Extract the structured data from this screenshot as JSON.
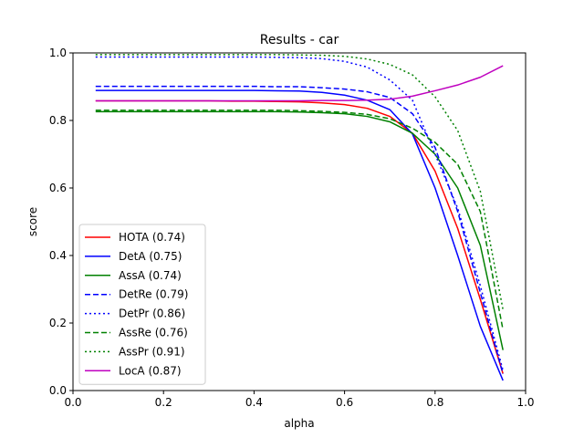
{
  "chart_data": {
    "type": "line",
    "title": "Results - car",
    "xlabel": "alpha",
    "ylabel": "score",
    "xlim": [
      0,
      1
    ],
    "ylim": [
      0,
      1
    ],
    "xticks": [
      "0.0",
      "0.2",
      "0.4",
      "0.6",
      "0.8",
      "1.0"
    ],
    "yticks": [
      "0.0",
      "0.2",
      "0.4",
      "0.6",
      "0.8",
      "1.0"
    ],
    "grid": false,
    "legend_position": "lower-left",
    "x": [
      0.05,
      0.1,
      0.15,
      0.2,
      0.25,
      0.3,
      0.35,
      0.4,
      0.45,
      0.5,
      0.55,
      0.6,
      0.65,
      0.7,
      0.75,
      0.8,
      0.85,
      0.9,
      0.95
    ],
    "series": [
      {
        "name": "HOTA (0.74)",
        "color": "#ff0000",
        "dash": "solid",
        "values": [
          0.858,
          0.858,
          0.858,
          0.858,
          0.858,
          0.858,
          0.857,
          0.857,
          0.856,
          0.855,
          0.852,
          0.847,
          0.836,
          0.812,
          0.762,
          0.65,
          0.48,
          0.27,
          0.05
        ]
      },
      {
        "name": "DetA (0.75)",
        "color": "#0000ff",
        "dash": "solid",
        "values": [
          0.889,
          0.889,
          0.889,
          0.889,
          0.889,
          0.889,
          0.889,
          0.889,
          0.888,
          0.887,
          0.883,
          0.875,
          0.86,
          0.832,
          0.76,
          0.6,
          0.4,
          0.19,
          0.03
        ]
      },
      {
        "name": "AssA (0.74)",
        "color": "#008000",
        "dash": "solid",
        "values": [
          0.826,
          0.826,
          0.826,
          0.826,
          0.826,
          0.826,
          0.826,
          0.826,
          0.826,
          0.825,
          0.823,
          0.82,
          0.812,
          0.796,
          0.762,
          0.7,
          0.6,
          0.43,
          0.12
        ]
      },
      {
        "name": "DetRe (0.79)",
        "color": "#0000ff",
        "dash": "dashed",
        "values": [
          0.901,
          0.901,
          0.901,
          0.901,
          0.901,
          0.901,
          0.901,
          0.901,
          0.9,
          0.9,
          0.897,
          0.893,
          0.885,
          0.868,
          0.82,
          0.72,
          0.53,
          0.29,
          0.05
        ]
      },
      {
        "name": "DetPr (0.86)",
        "color": "#0000ff",
        "dash": "dotted",
        "values": [
          0.988,
          0.988,
          0.988,
          0.988,
          0.988,
          0.988,
          0.988,
          0.988,
          0.987,
          0.986,
          0.983,
          0.975,
          0.958,
          0.92,
          0.86,
          0.7,
          0.54,
          0.31,
          0.06
        ]
      },
      {
        "name": "AssRe (0.76)",
        "color": "#008000",
        "dash": "dashed",
        "values": [
          0.83,
          0.83,
          0.83,
          0.83,
          0.83,
          0.83,
          0.83,
          0.83,
          0.83,
          0.829,
          0.827,
          0.824,
          0.818,
          0.805,
          0.777,
          0.735,
          0.67,
          0.53,
          0.18
        ]
      },
      {
        "name": "AssPr (0.91)",
        "color": "#008000",
        "dash": "dotted",
        "values": [
          0.995,
          0.995,
          0.995,
          0.995,
          0.995,
          0.995,
          0.995,
          0.995,
          0.995,
          0.994,
          0.993,
          0.99,
          0.982,
          0.966,
          0.935,
          0.87,
          0.77,
          0.59,
          0.24
        ]
      },
      {
        "name": "LocA (0.87)",
        "color": "#bf00bf",
        "dash": "solid",
        "values": [
          0.858,
          0.858,
          0.858,
          0.858,
          0.858,
          0.858,
          0.858,
          0.858,
          0.858,
          0.858,
          0.859,
          0.859,
          0.86,
          0.863,
          0.872,
          0.888,
          0.905,
          0.928,
          0.962
        ]
      }
    ]
  }
}
